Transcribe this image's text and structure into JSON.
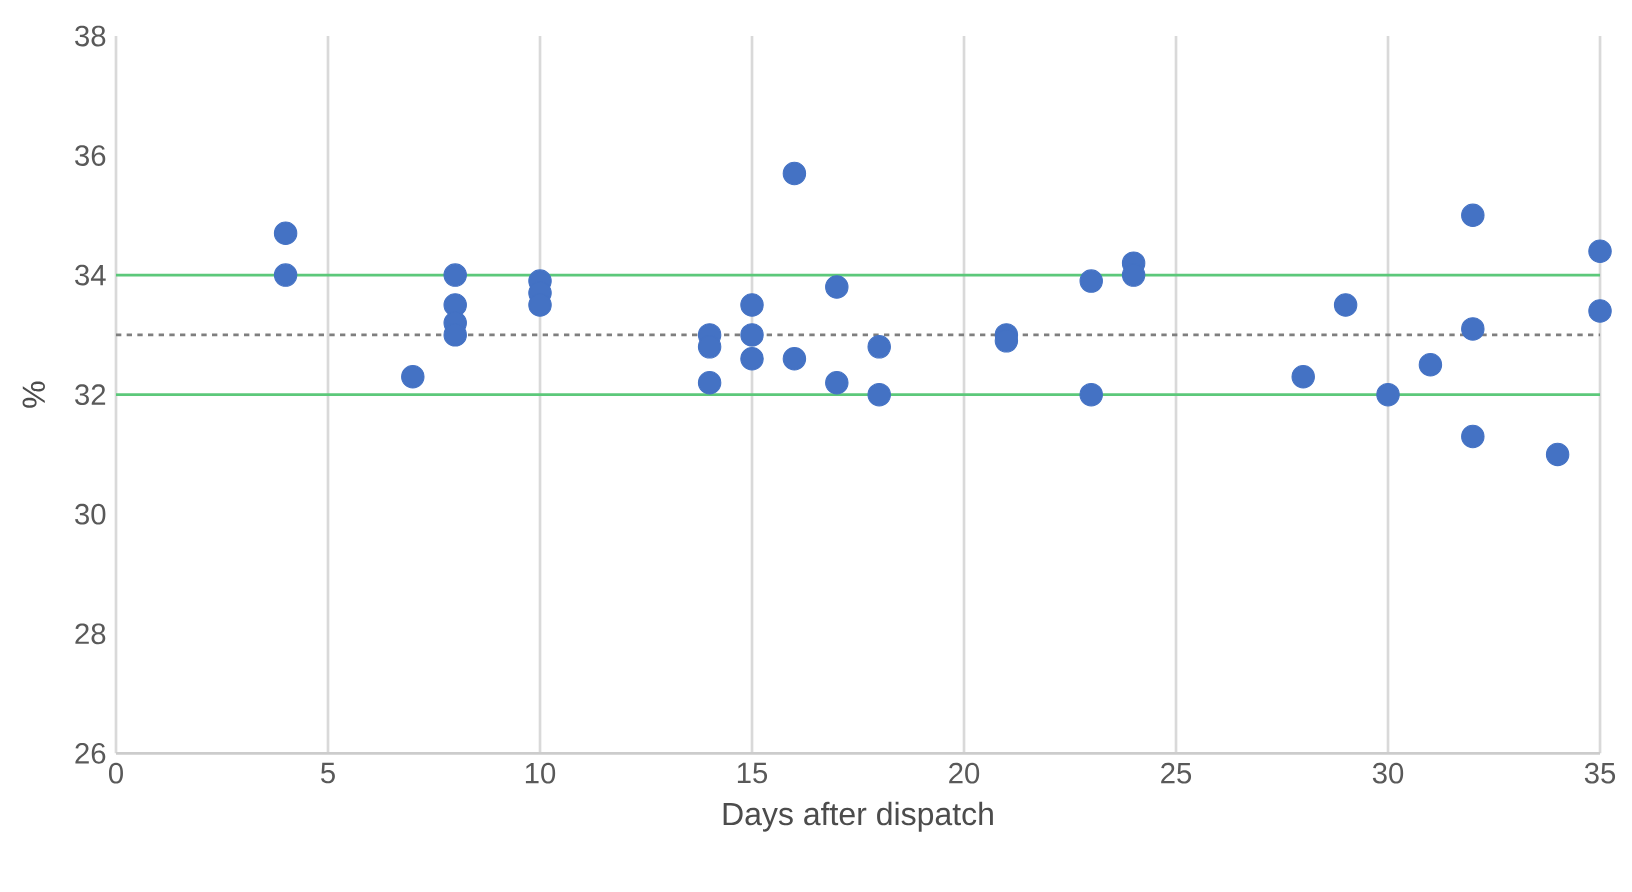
{
  "chart_data": {
    "type": "scatter",
    "xlabel": "Days after dispatch",
    "ylabel": "%",
    "x": [
      4,
      4,
      7,
      8,
      8,
      8,
      8,
      10,
      10,
      10,
      14,
      14,
      14,
      15,
      15,
      15,
      16,
      16,
      17,
      17,
      18,
      18,
      21,
      21,
      23,
      23,
      24,
      24,
      28,
      29,
      30,
      31,
      32,
      32,
      32,
      34,
      35,
      35
    ],
    "values": [
      34.7,
      34.0,
      32.3,
      34.0,
      33.5,
      33.2,
      33.0,
      33.9,
      33.7,
      33.5,
      33.0,
      32.8,
      32.2,
      33.5,
      33.0,
      32.6,
      35.7,
      32.6,
      33.8,
      32.2,
      32.8,
      32.0,
      33.0,
      32.9,
      33.9,
      32.0,
      34.2,
      34.0,
      32.3,
      33.5,
      32.0,
      32.5,
      35.0,
      33.1,
      31.3,
      31.0,
      34.4,
      33.4
    ],
    "color": "#4472c4",
    "xlim": [
      0,
      35
    ],
    "xticks": [
      0,
      5,
      10,
      15,
      20,
      25,
      30,
      35
    ],
    "ylim": [
      26,
      38
    ],
    "yticks": [
      26,
      28,
      30,
      32,
      34,
      36,
      38
    ],
    "grid": "x",
    "ref_lines": [
      {
        "axis": "y",
        "value": 34,
        "color": "#5cc87a",
        "line_style": "solid"
      },
      {
        "axis": "y",
        "value": 32,
        "color": "#5cc87a",
        "line_style": "solid"
      },
      {
        "axis": "y",
        "value": 33,
        "color": "#7f7f7f",
        "line_style": "dotted"
      }
    ]
  }
}
